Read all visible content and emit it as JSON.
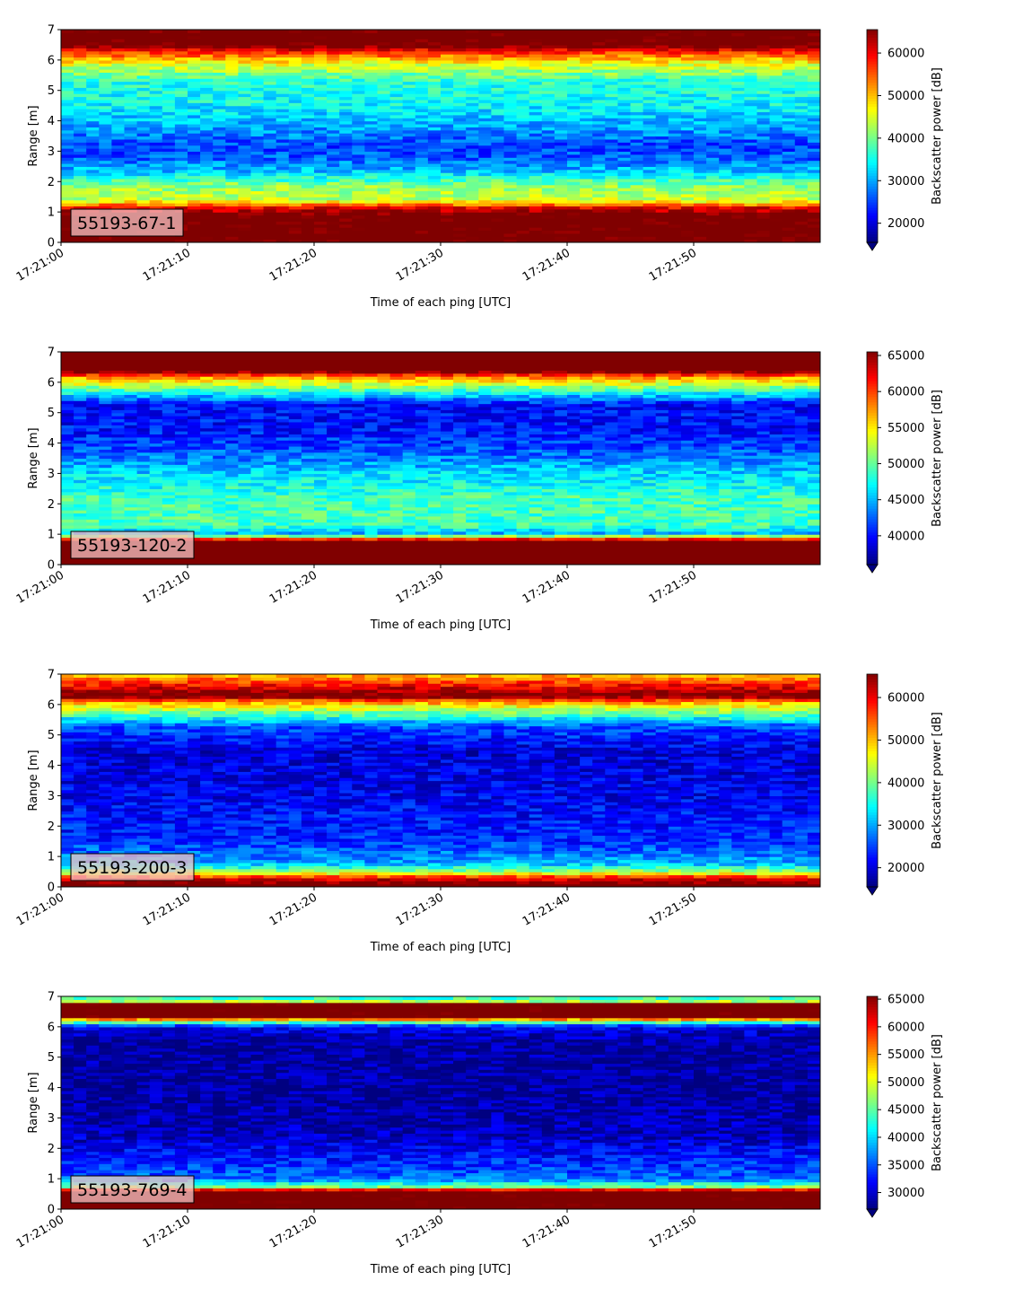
{
  "colormap": "jet",
  "colors": {
    "axis": "#000000",
    "label_box_fill": "#f4c4c4",
    "background": "#ffffff"
  },
  "chart_data": [
    {
      "type": "heatmap",
      "label": "55193-67-1",
      "xlabel": "Time of each ping [UTC]",
      "ylabel": "Range [m]",
      "colorbar_label": "Backscatter power [dB]",
      "xlim": [
        "17:21:00",
        "17:21:59"
      ],
      "xticks": [
        "17:21:00",
        "17:21:10",
        "17:21:20",
        "17:21:30",
        "17:21:40",
        "17:21:50"
      ],
      "ylim": [
        0,
        7
      ],
      "yticks": [
        0,
        1,
        2,
        3,
        4,
        5,
        6,
        7
      ],
      "clim": [
        15500,
        65500
      ],
      "colorbar_ticks": [
        20000,
        30000,
        40000,
        50000,
        60000
      ],
      "colorbar_extend": "min",
      "profile": [
        {
          "range": 0.15,
          "value": 68000
        },
        {
          "range": 0.9,
          "value": 68000
        },
        {
          "range": 1.15,
          "value": 60000
        },
        {
          "range": 1.4,
          "value": 44000
        },
        {
          "range": 1.9,
          "value": 41000
        },
        {
          "range": 2.3,
          "value": 32000
        },
        {
          "range": 2.8,
          "value": 26000
        },
        {
          "range": 3.2,
          "value": 25000
        },
        {
          "range": 3.8,
          "value": 30000
        },
        {
          "range": 4.5,
          "value": 34000
        },
        {
          "range": 5.3,
          "value": 36000
        },
        {
          "range": 5.9,
          "value": 46000
        },
        {
          "range": 6.3,
          "value": 58000
        },
        {
          "range": 6.5,
          "value": 68000
        },
        {
          "range": 7.0,
          "value": 68000
        }
      ]
    },
    {
      "type": "heatmap",
      "label": "55193-120-2",
      "xlabel": "Time of each ping [UTC]",
      "ylabel": "Range [m]",
      "colorbar_label": "Backscatter power [dB]",
      "xlim": [
        "17:21:00",
        "17:21:59"
      ],
      "xticks": [
        "17:21:00",
        "17:21:10",
        "17:21:20",
        "17:21:30",
        "17:21:40",
        "17:21:50"
      ],
      "ylim": [
        0,
        7
      ],
      "yticks": [
        0,
        1,
        2,
        3,
        4,
        5,
        6,
        7
      ],
      "clim": [
        36000,
        65500
      ],
      "colorbar_ticks": [
        40000,
        45000,
        50000,
        55000,
        60000,
        65000
      ],
      "colorbar_extend": "min",
      "profile": [
        {
          "range": 0.15,
          "value": 68000
        },
        {
          "range": 0.75,
          "value": 68000
        },
        {
          "range": 0.9,
          "value": 58000
        },
        {
          "range": 1.0,
          "value": 44000
        },
        {
          "range": 1.3,
          "value": 49000
        },
        {
          "range": 2.2,
          "value": 49000
        },
        {
          "range": 3.0,
          "value": 46000
        },
        {
          "range": 3.8,
          "value": 42000
        },
        {
          "range": 4.5,
          "value": 40000
        },
        {
          "range": 5.3,
          "value": 40000
        },
        {
          "range": 5.8,
          "value": 50000
        },
        {
          "range": 6.2,
          "value": 58000
        },
        {
          "range": 6.4,
          "value": 68000
        },
        {
          "range": 7.0,
          "value": 68000
        }
      ]
    },
    {
      "type": "heatmap",
      "label": "55193-200-3",
      "xlabel": "Time of each ping [UTC]",
      "ylabel": "Range [m]",
      "colorbar_label": "Backscatter power [dB]",
      "xlim": [
        "17:21:00",
        "17:21:59"
      ],
      "xticks": [
        "17:21:00",
        "17:21:10",
        "17:21:20",
        "17:21:30",
        "17:21:40",
        "17:21:50"
      ],
      "ylim": [
        0,
        7
      ],
      "yticks": [
        0,
        1,
        2,
        3,
        4,
        5,
        6,
        7
      ],
      "clim": [
        15500,
        65500
      ],
      "colorbar_ticks": [
        20000,
        30000,
        40000,
        50000,
        60000
      ],
      "colorbar_extend": "min",
      "profile": [
        {
          "range": 0.1,
          "value": 68000
        },
        {
          "range": 0.3,
          "value": 60000
        },
        {
          "range": 0.5,
          "value": 42000
        },
        {
          "range": 0.8,
          "value": 30000
        },
        {
          "range": 1.5,
          "value": 24000
        },
        {
          "range": 3.0,
          "value": 21000
        },
        {
          "range": 4.5,
          "value": 20000
        },
        {
          "range": 5.3,
          "value": 26000
        },
        {
          "range": 5.8,
          "value": 42000
        },
        {
          "range": 6.1,
          "value": 52000
        },
        {
          "range": 6.3,
          "value": 68000
        },
        {
          "range": 6.6,
          "value": 60000
        },
        {
          "range": 7.0,
          "value": 50000
        }
      ]
    },
    {
      "type": "heatmap",
      "label": "55193-769-4",
      "xlabel": "Time of each ping [UTC]",
      "ylabel": "Range [m]",
      "colorbar_label": "Backscatter power [dB]",
      "xlim": [
        "17:21:00",
        "17:21:59"
      ],
      "xticks": [
        "17:21:00",
        "17:21:10",
        "17:21:20",
        "17:21:30",
        "17:21:40",
        "17:21:50"
      ],
      "ylim": [
        0,
        7
      ],
      "yticks": [
        0,
        1,
        2,
        3,
        4,
        5,
        6,
        7
      ],
      "clim": [
        27000,
        65500
      ],
      "colorbar_ticks": [
        30000,
        35000,
        40000,
        45000,
        50000,
        55000,
        60000,
        65000
      ],
      "colorbar_extend": "min",
      "profile": [
        {
          "range": 0.15,
          "value": 68000
        },
        {
          "range": 0.6,
          "value": 68000
        },
        {
          "range": 0.75,
          "value": 46000
        },
        {
          "range": 1.0,
          "value": 36000
        },
        {
          "range": 1.6,
          "value": 33000
        },
        {
          "range": 2.5,
          "value": 29000
        },
        {
          "range": 4.0,
          "value": 28000
        },
        {
          "range": 5.5,
          "value": 28000
        },
        {
          "range": 6.0,
          "value": 31000
        },
        {
          "range": 6.2,
          "value": 48000
        },
        {
          "range": 6.35,
          "value": 68000
        },
        {
          "range": 6.75,
          "value": 68000
        },
        {
          "range": 6.85,
          "value": 48000
        },
        {
          "range": 7.0,
          "value": 42000
        }
      ]
    }
  ]
}
